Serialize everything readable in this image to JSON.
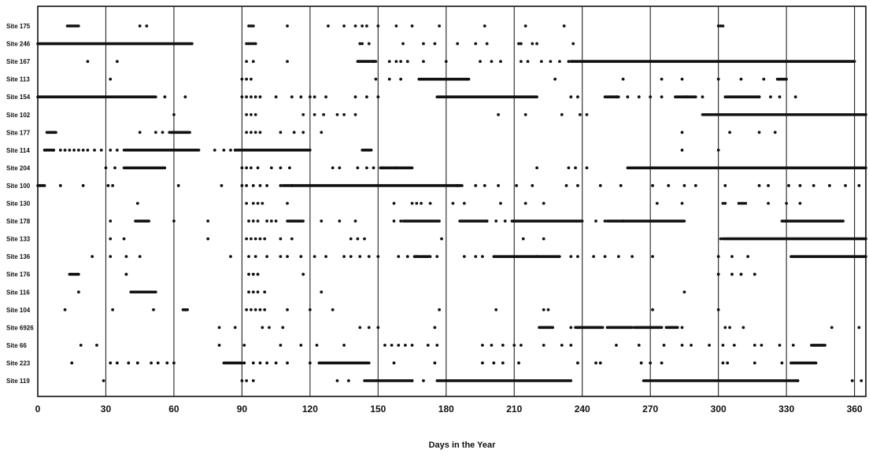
{
  "chart_data": {
    "type": "scatter",
    "xlabel": "Days in the Year",
    "ylabel": "",
    "title": "",
    "xlim": [
      0,
      365
    ],
    "xticks": [
      0,
      30,
      60,
      90,
      120,
      150,
      180,
      210,
      240,
      270,
      300,
      330,
      360
    ],
    "gridlines_x": [
      30,
      60,
      90,
      120,
      150,
      180,
      210,
      240,
      270,
      300,
      330,
      360
    ],
    "grid": true,
    "mark_color": "#111111",
    "sites": [
      {
        "label": "Site 175",
        "segments": [
          [
            13,
            18
          ]
        ],
        "points": [
          45,
          48,
          93,
          94,
          95,
          110,
          128,
          135,
          140,
          143,
          145,
          150,
          158,
          165,
          177,
          197,
          215,
          232,
          300,
          301,
          302
        ]
      },
      {
        "label": "Site 246",
        "segments": [
          [
            0,
            68
          ]
        ],
        "points": [
          92,
          93,
          94,
          95,
          96,
          142,
          143,
          146,
          161,
          170,
          175,
          185,
          193,
          198,
          212,
          213,
          218,
          220,
          236
        ]
      },
      {
        "label": "Site 167",
        "segments": [
          [
            141,
            149
          ],
          [
            235,
            270
          ],
          [
            270,
            360
          ]
        ],
        "points": [
          22,
          35,
          92,
          95,
          110,
          148,
          155,
          158,
          160,
          163,
          170,
          180,
          195,
          200,
          204,
          213,
          216,
          222,
          226,
          230,
          234
        ]
      },
      {
        "label": "Site 113",
        "segments": [
          [
            168,
            190
          ],
          [
            326,
            330
          ]
        ],
        "points": [
          32,
          90,
          92,
          94,
          149,
          155,
          160,
          228,
          258,
          275,
          284,
          300,
          310,
          320
        ]
      },
      {
        "label": "Site 154",
        "segments": [
          [
            0,
            52
          ],
          [
            176,
            220
          ],
          [
            250,
            256
          ],
          [
            281,
            290
          ],
          [
            303,
            318
          ]
        ],
        "points": [
          56,
          65,
          90,
          92,
          94,
          96,
          98,
          105,
          112,
          116,
          120,
          122,
          127,
          140,
          145,
          150,
          235,
          238,
          255,
          260,
          265,
          270,
          275,
          286,
          293,
          318,
          323,
          327,
          334
        ]
      },
      {
        "label": "Site 102",
        "segments": [
          [
            293,
            365
          ]
        ],
        "points": [
          60,
          92,
          94,
          96,
          117,
          122,
          126,
          132,
          135,
          140,
          203,
          215,
          231,
          239,
          242
        ]
      },
      {
        "label": "Site 177",
        "segments": [
          [
            4,
            8
          ],
          [
            58,
            67
          ]
        ],
        "points": [
          45,
          52,
          55,
          92,
          94,
          96,
          98,
          107,
          113,
          117,
          125,
          284,
          305,
          318,
          325
        ]
      },
      {
        "label": "Site 114",
        "segments": [
          [
            3,
            7
          ],
          [
            38,
            71
          ],
          [
            87,
            120
          ],
          [
            143,
            147
          ]
        ],
        "points": [
          3,
          7,
          10,
          12,
          14,
          16,
          18,
          20,
          22,
          25,
          28,
          32,
          35,
          78,
          82,
          85,
          87,
          284,
          300
        ]
      },
      {
        "label": "Site 204",
        "segments": [
          [
            38,
            56
          ],
          [
            151,
            165
          ],
          [
            260,
            365
          ]
        ],
        "points": [
          30,
          34,
          90,
          92,
          94,
          97,
          103,
          107,
          111,
          130,
          133,
          141,
          145,
          148,
          152,
          158,
          220,
          234,
          237,
          242
        ]
      },
      {
        "label": "Site 100",
        "segments": [
          [
            0,
            3
          ],
          [
            108,
            187
          ]
        ],
        "points": [
          10,
          20,
          31,
          33,
          62,
          81,
          90,
          92,
          95,
          98,
          101,
          107,
          112,
          185,
          193,
          197,
          203,
          211,
          218,
          233,
          238,
          248,
          257,
          271,
          278,
          285,
          290,
          303,
          318,
          322,
          331,
          336,
          342,
          349,
          356,
          362
        ]
      },
      {
        "label": "Site 130",
        "segments": [],
        "points": [
          44,
          92,
          95,
          97,
          99,
          110,
          157,
          165,
          167,
          169,
          173,
          183,
          188,
          204,
          215,
          223,
          273,
          284,
          302,
          303,
          309,
          310,
          311,
          312,
          322,
          330,
          336
        ]
      },
      {
        "label": "Site 178",
        "segments": [
          [
            43,
            49
          ],
          [
            110,
            117
          ],
          [
            161,
            177
          ],
          [
            186,
            198
          ],
          [
            209,
            240
          ],
          [
            251,
            285
          ],
          [
            328,
            355
          ]
        ],
        "points": [
          32,
          60,
          75,
          93,
          95,
          97,
          101,
          103,
          105,
          125,
          133,
          140,
          157,
          160,
          198,
          202,
          206,
          246,
          250,
          258
        ]
      },
      {
        "label": "Site 133",
        "segments": [
          [
            302,
            365
          ]
        ],
        "points": [
          32,
          38,
          75,
          92,
          94,
          96,
          98,
          100,
          107,
          112,
          138,
          141,
          144,
          178,
          214,
          223,
          301
        ]
      },
      {
        "label": "Site 136",
        "segments": [
          [
            166,
            173
          ],
          [
            201,
            230
          ],
          [
            332,
            365
          ]
        ],
        "points": [
          24,
          32,
          39,
          45,
          85,
          93,
          96,
          101,
          107,
          110,
          116,
          122,
          127,
          135,
          138,
          142,
          146,
          150,
          159,
          163,
          167,
          176,
          188,
          193,
          196,
          220,
          235,
          238,
          245,
          250,
          256,
          262,
          271,
          300,
          306,
          313
        ]
      },
      {
        "label": "Site 176",
        "segments": [
          [
            14,
            18
          ]
        ],
        "points": [
          39,
          93,
          95,
          97,
          117,
          300,
          306,
          310,
          316
        ]
      },
      {
        "label": "Site 116",
        "segments": [
          [
            41,
            52
          ]
        ],
        "points": [
          18,
          93,
          95,
          97,
          100,
          125,
          285
        ]
      },
      {
        "label": "Site 104",
        "segments": [
          [
            64,
            66
          ]
        ],
        "points": [
          12,
          33,
          51,
          92,
          94,
          96,
          98,
          100,
          110,
          120,
          130,
          177,
          202,
          223,
          225,
          271,
          300
        ]
      },
      {
        "label": "Site 6926",
        "segments": [
          [
            221,
            227
          ],
          [
            237,
            249
          ],
          [
            251,
            262
          ],
          [
            263,
            275
          ],
          [
            277,
            282
          ]
        ],
        "points": [
          80,
          87,
          99,
          102,
          108,
          142,
          146,
          150,
          175,
          235,
          238,
          284,
          303,
          305,
          311,
          350,
          362
        ]
      },
      {
        "label": "Site 66",
        "segments": [
          [
            341,
            347
          ]
        ],
        "points": [
          19,
          26,
          80,
          91,
          107,
          116,
          123,
          135,
          153,
          156,
          159,
          162,
          165,
          172,
          176,
          196,
          200,
          205,
          210,
          213,
          223,
          231,
          235,
          255,
          265,
          276,
          284,
          288,
          296,
          302,
          307,
          316,
          319,
          327,
          333
        ]
      },
      {
        "label": "Site 223",
        "segments": [
          [
            82,
            90
          ],
          [
            124,
            146
          ],
          [
            332,
            343
          ]
        ],
        "points": [
          15,
          32,
          35,
          40,
          44,
          50,
          53,
          57,
          60,
          91,
          95,
          98,
          101,
          105,
          110,
          120,
          157,
          175,
          196,
          201,
          205,
          212,
          238,
          246,
          248,
          266,
          270,
          275,
          302,
          304,
          316,
          328
        ]
      },
      {
        "label": "Site 119",
        "segments": [
          [
            144,
            165
          ],
          [
            176,
            235
          ],
          [
            267,
            335
          ]
        ],
        "points": [
          29,
          90,
          92,
          95,
          132,
          137,
          165,
          170,
          335,
          359,
          363
        ]
      }
    ]
  }
}
